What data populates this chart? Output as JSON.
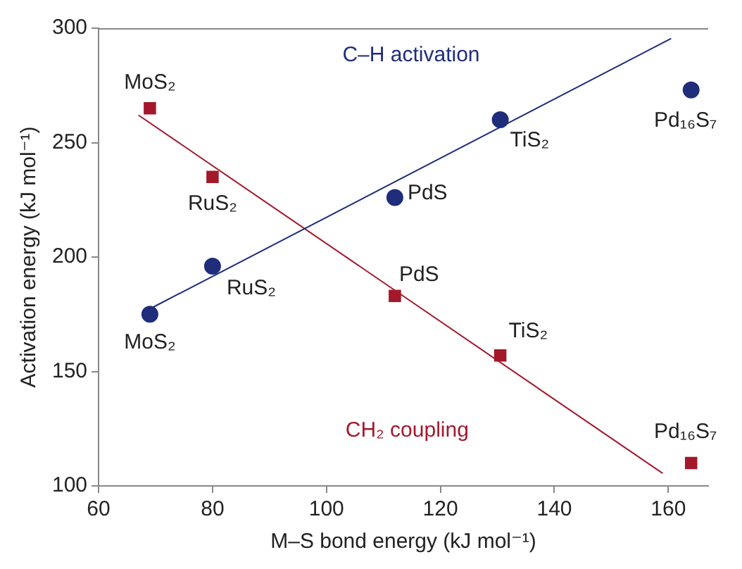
{
  "chart_data": {
    "type": "scatter",
    "xlabel": "M–S bond energy (kJ mol⁻¹)",
    "ylabel": "Activation energy (kJ mol⁻¹)",
    "xlim": [
      60,
      167
    ],
    "xticks": [
      60,
      80,
      100,
      120,
      140,
      160
    ],
    "ylim": [
      100,
      300
    ],
    "yticks": [
      100,
      150,
      200,
      250,
      300
    ],
    "grid": false,
    "legend": false,
    "series": [
      {
        "name": "C–H activation",
        "marker": "circle",
        "color": "#1f2d7b",
        "x": [
          69,
          80,
          112,
          130.5,
          164
        ],
        "values": [
          175,
          196,
          226,
          260,
          273
        ]
      },
      {
        "name": "CH₂ coupling",
        "marker": "square",
        "color": "#a3192b",
        "x": [
          69,
          80,
          112,
          130.5,
          164
        ],
        "values": [
          265,
          235,
          183,
          157,
          110
        ]
      },
      {
        "type": "line",
        "marker": "none",
        "color": "#1f2d7b",
        "x": [
          69.5,
          160.5
        ],
        "values": [
          178,
          295.5
        ]
      },
      {
        "type": "line",
        "marker": "none",
        "color": "#a3192b",
        "x": [
          67,
          159
        ],
        "values": [
          262,
          105.5
        ]
      }
    ],
    "annotations": [
      {
        "text": "MoS₂",
        "x": 69,
        "y": 175
      },
      {
        "text": "RuS₂",
        "x": 80,
        "y": 196
      },
      {
        "text": "PdS",
        "x": 112,
        "y": 226
      },
      {
        "text": "TiS₂",
        "x": 130.5,
        "y": 260
      },
      {
        "text": "Pd₁₆S₇",
        "x": 164,
        "y": 273
      },
      {
        "text": "MoS₂",
        "x": 69,
        "y": 265
      },
      {
        "text": "RuS₂",
        "x": 80,
        "y": 235
      },
      {
        "text": "PdS",
        "x": 112,
        "y": 183
      },
      {
        "text": "TiS₂",
        "x": 130.5,
        "y": 157
      },
      {
        "text": "Pd₁₆S₇",
        "x": 164,
        "y": 110
      }
    ]
  }
}
